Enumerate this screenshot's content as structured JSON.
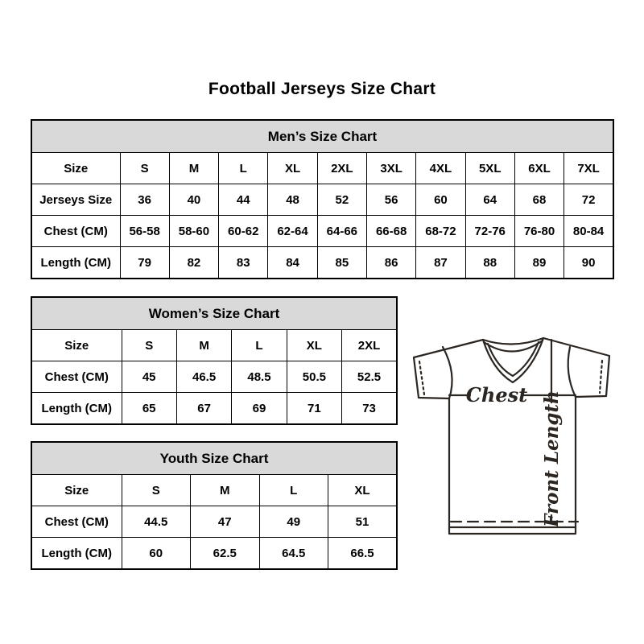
{
  "page": {
    "title": "Football Jerseys Size Chart"
  },
  "tables": [
    {
      "id": "mens",
      "title": "Men’s Size Chart",
      "rows": [
        {
          "label": "Size",
          "values": [
            "S",
            "M",
            "L",
            "XL",
            "2XL",
            "3XL",
            "4XL",
            "5XL",
            "6XL",
            "7XL"
          ]
        },
        {
          "label": "Jerseys Size",
          "values": [
            "36",
            "40",
            "44",
            "48",
            "52",
            "56",
            "60",
            "64",
            "68",
            "72"
          ]
        },
        {
          "label": "Chest (CM)",
          "values": [
            "56-58",
            "58-60",
            "60-62",
            "62-64",
            "64-66",
            "66-68",
            "68-72",
            "72-76",
            "76-80",
            "80-84"
          ]
        },
        {
          "label": "Length (CM)",
          "values": [
            "79",
            "82",
            "83",
            "84",
            "85",
            "86",
            "87",
            "88",
            "89",
            "90"
          ]
        }
      ]
    },
    {
      "id": "womens",
      "title": "Women’s Size Chart",
      "rows": [
        {
          "label": "Size",
          "values": [
            "S",
            "M",
            "L",
            "XL",
            "2XL"
          ]
        },
        {
          "label": "Chest (CM)",
          "values": [
            "45",
            "46.5",
            "48.5",
            "50.5",
            "52.5"
          ]
        },
        {
          "label": "Length (CM)",
          "values": [
            "65",
            "67",
            "69",
            "71",
            "73"
          ]
        }
      ]
    },
    {
      "id": "youth",
      "title": "Youth Size Chart",
      "rows": [
        {
          "label": "Size",
          "values": [
            "S",
            "M",
            "L",
            "XL"
          ]
        },
        {
          "label": "Chest (CM)",
          "values": [
            "44.5",
            "47",
            "49",
            "51"
          ]
        },
        {
          "label": "Length (CM)",
          "values": [
            "60",
            "62.5",
            "64.5",
            "66.5"
          ]
        }
      ]
    }
  ],
  "diagram": {
    "chest_label": "Chest",
    "front_length_label": "Front Length"
  },
  "colors": {
    "header_bg": "#d9d9d9",
    "border": "#000000",
    "diagram_line": "#2b2622",
    "text": "#000000"
  }
}
